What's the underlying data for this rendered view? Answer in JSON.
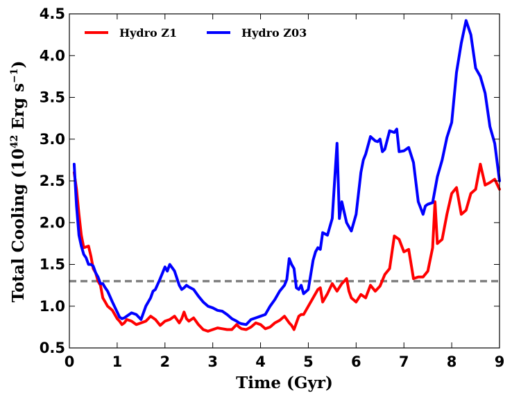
{
  "chart_data": {
    "type": "line",
    "title": "",
    "xlabel": "Time (Gyr)",
    "ylabel_parts": {
      "main": "Total Cooling (10",
      "exp": "42",
      "unit": " Erg s",
      "unit_exp": "−1",
      "close": ")"
    },
    "xlim": [
      0,
      9
    ],
    "ylim": [
      0.5,
      4.5
    ],
    "x_ticks": [
      "0",
      "1",
      "2",
      "3",
      "4",
      "5",
      "6",
      "7",
      "8",
      "9"
    ],
    "y_ticks": [
      "0.5",
      "1.0",
      "1.5",
      "2.0",
      "2.5",
      "3.0",
      "3.5",
      "4.0",
      "4.5"
    ],
    "grid": false,
    "legend_position": "top-left",
    "reference_line": {
      "y": 1.3,
      "color": "#808080",
      "style": "dashed"
    },
    "series": [
      {
        "name": "Hydro Z1",
        "color": "#ff0000",
        "x": [
          0.1,
          0.15,
          0.2,
          0.25,
          0.3,
          0.35,
          0.4,
          0.45,
          0.5,
          0.55,
          0.6,
          0.65,
          0.7,
          0.75,
          0.8,
          0.9,
          1.0,
          1.05,
          1.1,
          1.15,
          1.2,
          1.3,
          1.4,
          1.5,
          1.6,
          1.7,
          1.75,
          1.8,
          1.9,
          2.0,
          2.1,
          2.2,
          2.3,
          2.35,
          2.4,
          2.45,
          2.5,
          2.6,
          2.7,
          2.8,
          2.9,
          3.0,
          3.1,
          3.2,
          3.3,
          3.4,
          3.5,
          3.55,
          3.6,
          3.7,
          3.8,
          3.9,
          4.0,
          4.1,
          4.2,
          4.3,
          4.4,
          4.5,
          4.6,
          4.65,
          4.7,
          4.75,
          4.8,
          4.85,
          4.9,
          5.0,
          5.1,
          5.2,
          5.25,
          5.3,
          5.4,
          5.5,
          5.6,
          5.7,
          5.8,
          5.85,
          5.9,
          6.0,
          6.1,
          6.2,
          6.3,
          6.4,
          6.5,
          6.6,
          6.7,
          6.8,
          6.9,
          7.0,
          7.1,
          7.2,
          7.3,
          7.4,
          7.5,
          7.6,
          7.65,
          7.7,
          7.8,
          7.9,
          8.0,
          8.1,
          8.2,
          8.3,
          8.4,
          8.5,
          8.6,
          8.7,
          8.8,
          8.9,
          9.0
        ],
        "values": [
          2.6,
          2.4,
          2.1,
          1.85,
          1.7,
          1.71,
          1.72,
          1.6,
          1.45,
          1.4,
          1.3,
          1.25,
          1.1,
          1.05,
          1.0,
          0.95,
          0.85,
          0.82,
          0.78,
          0.8,
          0.84,
          0.82,
          0.78,
          0.8,
          0.82,
          0.88,
          0.86,
          0.84,
          0.77,
          0.82,
          0.84,
          0.88,
          0.8,
          0.85,
          0.93,
          0.85,
          0.82,
          0.86,
          0.78,
          0.72,
          0.7,
          0.72,
          0.74,
          0.73,
          0.72,
          0.72,
          0.78,
          0.75,
          0.73,
          0.72,
          0.75,
          0.8,
          0.78,
          0.73,
          0.75,
          0.8,
          0.83,
          0.88,
          0.8,
          0.77,
          0.72,
          0.8,
          0.88,
          0.9,
          0.9,
          1.0,
          1.1,
          1.2,
          1.22,
          1.05,
          1.15,
          1.27,
          1.18,
          1.27,
          1.33,
          1.18,
          1.1,
          1.05,
          1.14,
          1.1,
          1.25,
          1.18,
          1.24,
          1.38,
          1.45,
          1.84,
          1.8,
          1.65,
          1.68,
          1.33,
          1.35,
          1.35,
          1.42,
          1.7,
          2.25,
          1.75,
          1.8,
          2.1,
          2.35,
          2.42,
          2.1,
          2.15,
          2.35,
          2.4,
          2.7,
          2.45,
          2.48,
          2.52,
          2.4
        ]
      },
      {
        "name": "Hydro Z03",
        "color": "#0000ff",
        "x": [
          0.1,
          0.15,
          0.2,
          0.25,
          0.3,
          0.35,
          0.4,
          0.45,
          0.5,
          0.55,
          0.6,
          0.65,
          0.7,
          0.75,
          0.8,
          0.9,
          1.0,
          1.05,
          1.1,
          1.15,
          1.2,
          1.3,
          1.4,
          1.5,
          1.6,
          1.7,
          1.75,
          1.8,
          1.9,
          2.0,
          2.05,
          2.1,
          2.2,
          2.3,
          2.35,
          2.4,
          2.45,
          2.5,
          2.6,
          2.7,
          2.8,
          2.9,
          3.0,
          3.1,
          3.2,
          3.3,
          3.4,
          3.5,
          3.55,
          3.6,
          3.7,
          3.8,
          3.9,
          4.0,
          4.1,
          4.2,
          4.3,
          4.4,
          4.5,
          4.55,
          4.6,
          4.65,
          4.7,
          4.75,
          4.8,
          4.85,
          4.9,
          5.0,
          5.1,
          5.15,
          5.2,
          5.25,
          5.3,
          5.4,
          5.5,
          5.55,
          5.6,
          5.65,
          5.7,
          5.8,
          5.9,
          6.0,
          6.1,
          6.15,
          6.2,
          6.3,
          6.4,
          6.45,
          6.5,
          6.55,
          6.6,
          6.7,
          6.8,
          6.85,
          6.9,
          7.0,
          7.1,
          7.2,
          7.3,
          7.4,
          7.45,
          7.5,
          7.6,
          7.7,
          7.8,
          7.9,
          8.0,
          8.1,
          8.2,
          8.3,
          8.4,
          8.5,
          8.6,
          8.7,
          8.8,
          8.9,
          9.0
        ],
        "values": [
          2.7,
          2.2,
          1.85,
          1.72,
          1.62,
          1.58,
          1.5,
          1.5,
          1.48,
          1.4,
          1.35,
          1.27,
          1.27,
          1.22,
          1.18,
          1.05,
          0.93,
          0.87,
          0.85,
          0.86,
          0.88,
          0.92,
          0.9,
          0.84,
          1.0,
          1.1,
          1.18,
          1.2,
          1.33,
          1.47,
          1.42,
          1.5,
          1.42,
          1.25,
          1.2,
          1.22,
          1.25,
          1.23,
          1.2,
          1.12,
          1.05,
          1.0,
          0.98,
          0.95,
          0.94,
          0.9,
          0.85,
          0.82,
          0.8,
          0.79,
          0.78,
          0.84,
          0.86,
          0.88,
          0.9,
          1.0,
          1.08,
          1.18,
          1.25,
          1.32,
          1.57,
          1.5,
          1.45,
          1.22,
          1.2,
          1.25,
          1.15,
          1.2,
          1.55,
          1.65,
          1.7,
          1.68,
          1.88,
          1.85,
          2.05,
          2.5,
          2.95,
          2.05,
          2.25,
          2.0,
          1.9,
          2.1,
          2.6,
          2.75,
          2.82,
          3.03,
          2.98,
          2.97,
          3.0,
          2.85,
          2.88,
          3.1,
          3.08,
          3.12,
          2.85,
          2.86,
          2.9,
          2.72,
          2.25,
          2.1,
          2.2,
          2.22,
          2.24,
          2.55,
          2.75,
          3.02,
          3.2,
          3.8,
          4.15,
          4.42,
          4.25,
          3.85,
          3.75,
          3.55,
          3.15,
          2.95,
          2.5
        ]
      }
    ]
  }
}
